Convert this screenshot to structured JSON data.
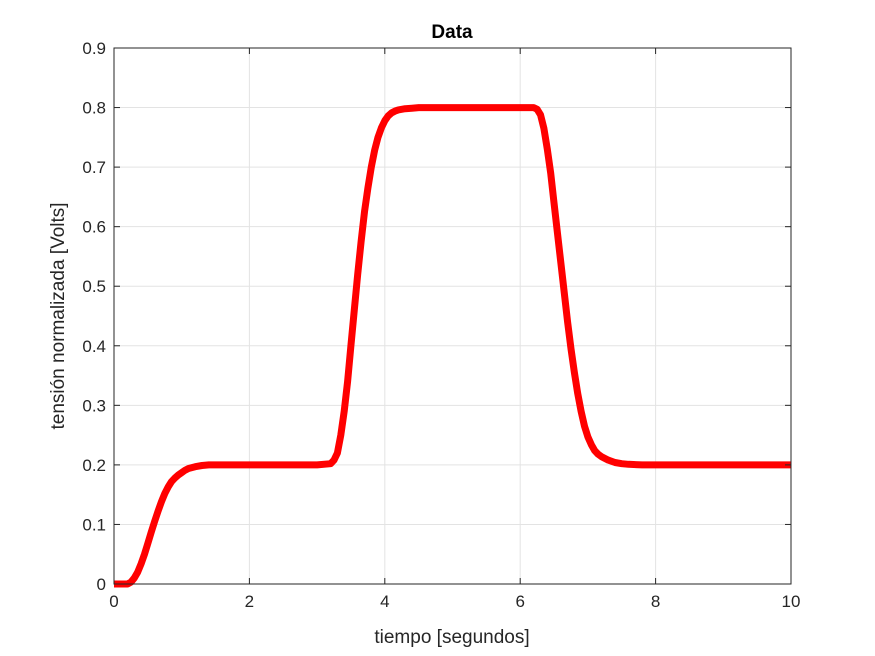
{
  "chart_data": {
    "type": "line",
    "title": "Data",
    "xlabel": "tiempo [segundos]",
    "ylabel": "tensión normalizada [Volts]",
    "xlim": [
      0,
      10
    ],
    "ylim": [
      0,
      0.9
    ],
    "x_ticks": [
      0,
      2,
      4,
      6,
      8,
      10
    ],
    "y_ticks": [
      0,
      0.1,
      0.2,
      0.3,
      0.4,
      0.5,
      0.6,
      0.7,
      0.8,
      0.9
    ],
    "x_tick_labels": [
      "0",
      "2",
      "4",
      "6",
      "8",
      "10"
    ],
    "y_tick_labels": [
      "0",
      "0.1",
      "0.2",
      "0.3",
      "0.4",
      "0.5",
      "0.6",
      "0.7",
      "0.8",
      "0.9"
    ],
    "grid": true,
    "series": [
      {
        "color": "#ff0000",
        "x": [
          0,
          0.1,
          0.2,
          0.25,
          0.3,
          0.35,
          0.4,
          0.45,
          0.5,
          0.55,
          0.6,
          0.65,
          0.7,
          0.75,
          0.8,
          0.85,
          0.9,
          0.95,
          1.0,
          1.05,
          1.1,
          1.2,
          1.3,
          1.4,
          1.5,
          1.6,
          1.8,
          2.0,
          2.5,
          3.0,
          3.2,
          3.25,
          3.3,
          3.35,
          3.4,
          3.45,
          3.5,
          3.55,
          3.6,
          3.65,
          3.7,
          3.75,
          3.8,
          3.85,
          3.9,
          3.95,
          4.0,
          4.05,
          4.1,
          4.15,
          4.2,
          4.3,
          4.4,
          4.5,
          4.6,
          4.8,
          5.0,
          5.5,
          6.0,
          6.2,
          6.25,
          6.3,
          6.35,
          6.4,
          6.45,
          6.5,
          6.55,
          6.6,
          6.65,
          6.7,
          6.75,
          6.8,
          6.85,
          6.9,
          6.95,
          7.0,
          7.05,
          7.1,
          7.15,
          7.2,
          7.3,
          7.4,
          7.5,
          7.6,
          7.8,
          8.0,
          8.5,
          9.0,
          9.5,
          10.0
        ],
        "y": [
          0,
          0,
          0,
          0.003,
          0.01,
          0.02,
          0.034,
          0.05,
          0.068,
          0.087,
          0.105,
          0.122,
          0.138,
          0.152,
          0.163,
          0.172,
          0.178,
          0.183,
          0.187,
          0.191,
          0.194,
          0.197,
          0.199,
          0.2,
          0.2,
          0.2,
          0.2,
          0.2,
          0.2,
          0.2,
          0.202,
          0.208,
          0.22,
          0.25,
          0.29,
          0.34,
          0.4,
          0.46,
          0.52,
          0.575,
          0.625,
          0.665,
          0.7,
          0.728,
          0.75,
          0.766,
          0.778,
          0.786,
          0.791,
          0.794,
          0.796,
          0.798,
          0.799,
          0.8,
          0.8,
          0.8,
          0.8,
          0.8,
          0.8,
          0.8,
          0.797,
          0.788,
          0.765,
          0.73,
          0.69,
          0.64,
          0.59,
          0.54,
          0.49,
          0.44,
          0.395,
          0.355,
          0.32,
          0.29,
          0.265,
          0.247,
          0.234,
          0.224,
          0.218,
          0.214,
          0.208,
          0.204,
          0.202,
          0.201,
          0.2,
          0.2,
          0.2,
          0.2,
          0.2,
          0.2
        ]
      }
    ]
  }
}
